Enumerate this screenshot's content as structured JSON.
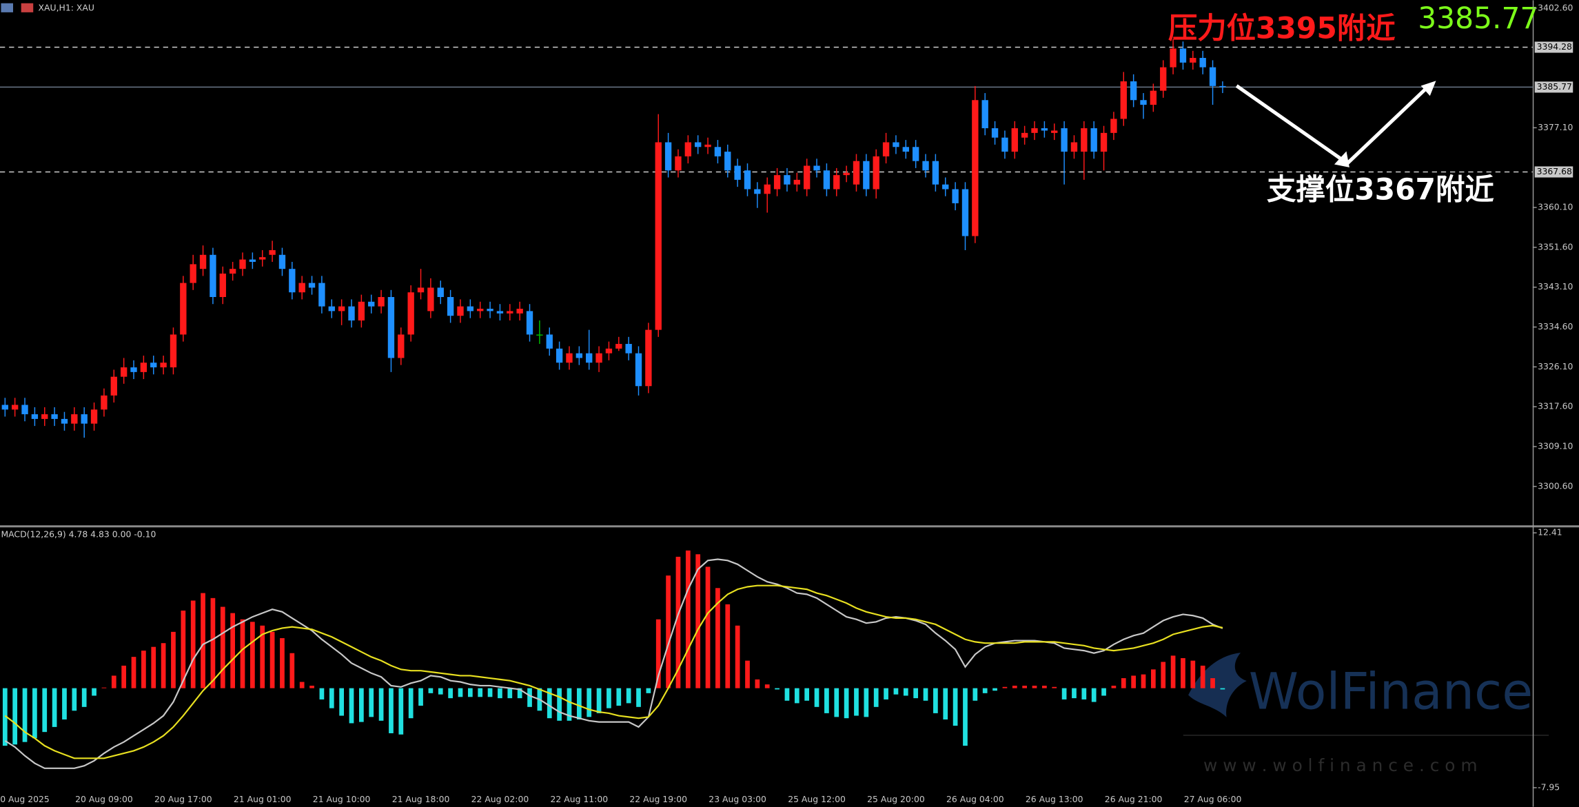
{
  "chart_data": [
    {
      "type": "candlestick",
      "title": "XAU,H1: XAU",
      "categories": [
        null,
        null,
        "0 Aug 2025",
        null,
        null,
        null,
        null,
        null,
        null,
        null,
        "20 Aug 09:00",
        null,
        null,
        null,
        null,
        null,
        null,
        null,
        "20 Aug 17:00",
        null,
        null,
        null,
        null,
        null,
        null,
        null,
        "21 Aug 01:00",
        null,
        null,
        null,
        null,
        null,
        null,
        null,
        "21 Aug 10:00",
        null,
        null,
        null,
        null,
        null,
        null,
        null,
        "21 Aug 18:00",
        null,
        null,
        null,
        null,
        null,
        null,
        null,
        "22 Aug 02:00",
        null,
        null,
        null,
        null,
        null,
        null,
        null,
        "22 Aug 11:00",
        null,
        null,
        null,
        null,
        null,
        null,
        null,
        "22 Aug 19:00",
        null,
        null,
        null,
        null,
        null,
        null,
        null,
        "23 Aug 03:00",
        null,
        null,
        null,
        null,
        null,
        null,
        null,
        "25 Aug 12:00",
        null,
        null,
        null,
        null,
        null,
        null,
        null,
        "25 Aug 20:00",
        null,
        null,
        null,
        null,
        null,
        null,
        null,
        "26 Aug 04:00",
        null,
        null,
        null,
        null,
        null,
        null,
        null,
        "26 Aug 13:00",
        null,
        null,
        null,
        null,
        null,
        null,
        null,
        "26 Aug 21:00",
        null,
        null,
        null,
        null,
        null,
        null,
        null,
        "27 Aug 06:00",
        null
      ],
      "open": [
        3318,
        3317,
        3318,
        3316,
        3315,
        3316,
        3315,
        3314,
        3316,
        3314,
        3317,
        3320,
        3324,
        3326,
        3325,
        3327,
        3326,
        3326,
        3333,
        3344,
        3347,
        3350,
        3341,
        3346,
        3347,
        3349,
        3349,
        3350,
        3350,
        3347,
        3342,
        3344,
        3344,
        3339,
        3338,
        3339,
        3336,
        3340,
        3339,
        3341,
        3328,
        3333,
        3342,
        3338,
        3343,
        3341,
        3337,
        3339,
        3338,
        3338.5,
        3338,
        3337.5,
        3337.5,
        3338,
        3333,
        3333,
        3330,
        3327,
        3329,
        3329,
        3327,
        3329,
        3330,
        3331,
        3329,
        3322,
        3334,
        3374,
        3368,
        3371,
        3374,
        3373,
        3373,
        3372,
        3369,
        3368,
        3364,
        3363,
        3364,
        3367,
        3365,
        3364,
        3369,
        3368,
        3364,
        3367,
        3365,
        3370,
        3364,
        3371,
        3374,
        3373,
        3373,
        3370,
        3370,
        3365,
        3364,
        3364,
        3354,
        3383,
        3377,
        3375,
        3372,
        3375,
        3376,
        3377,
        3376,
        3377,
        3372,
        3372,
        3377,
        3372,
        3376,
        3379,
        3387,
        3383,
        3382,
        3385,
        3390,
        3394,
        3391,
        3392,
        3390,
        3386
      ],
      "high": [
        3319.5,
        3319.5,
        3319.5,
        3317.5,
        3317.5,
        3317.5,
        3316.5,
        3317.5,
        3317.5,
        3318.5,
        3321.5,
        3325.5,
        3328,
        3327.5,
        3328.5,
        3328.5,
        3328.5,
        3334.5,
        3345.5,
        3350,
        3352,
        3351.5,
        3347.5,
        3348.5,
        3350.5,
        3350.5,
        3351,
        3353,
        3351.5,
        3348.5,
        3345.5,
        3345.5,
        3345.5,
        3340.5,
        3340.5,
        3340.5,
        3341.5,
        3341.5,
        3342.5,
        3342.5,
        3334.5,
        3343.5,
        3347,
        3345,
        3344.5,
        3342.5,
        3340.5,
        3340.5,
        3340,
        3340,
        3339.5,
        3339.5,
        3340,
        3339.5,
        3336,
        3334.5,
        3331.5,
        3330.5,
        3330.5,
        3334,
        3330.5,
        3331.5,
        3332.5,
        3332.5,
        3330.5,
        3335.5,
        3380,
        3376,
        3372.5,
        3375.5,
        3375.5,
        3375,
        3374.5,
        3373.5,
        3370.5,
        3369.5,
        3365.5,
        3366.5,
        3368.5,
        3368.5,
        3367.5,
        3370.5,
        3370.5,
        3369.5,
        3368.5,
        3369,
        3371.5,
        3371.5,
        3372.5,
        3376,
        3375.5,
        3374.5,
        3374.5,
        3371.5,
        3371.5,
        3366.5,
        3365.5,
        3365.5,
        3386,
        3384.5,
        3378.5,
        3376.5,
        3378.5,
        3377.5,
        3378.5,
        3378.5,
        3378,
        3378.5,
        3375.5,
        3378.5,
        3378.5,
        3377.5,
        3380.5,
        3389,
        3388.5,
        3384.5,
        3386.5,
        3391.5,
        3396,
        3395.5,
        3393.5,
        3393.5,
        3391.5,
        3387
      ],
      "low": [
        3315.5,
        3315.5,
        3314.5,
        3313.5,
        3313.5,
        3313.5,
        3312.5,
        3312.5,
        3311,
        3312.5,
        3315.5,
        3318.5,
        3322.5,
        3323.5,
        3323.5,
        3324.5,
        3324.5,
        3324.5,
        3331.5,
        3342.5,
        3345.5,
        3339.5,
        3339.5,
        3344.5,
        3345.5,
        3347,
        3347.5,
        3348.5,
        3345.5,
        3340.5,
        3340.5,
        3341.5,
        3337.5,
        3336.5,
        3335,
        3334.5,
        3334.5,
        3337.5,
        3337.5,
        3325,
        3326.5,
        3331.5,
        3340.5,
        3336.5,
        3339.5,
        3335.5,
        3335.5,
        3336.5,
        3336.5,
        3336.5,
        3336,
        3336,
        3336,
        3331.5,
        3331,
        3328.5,
        3325.5,
        3325.5,
        3326.5,
        3325.5,
        3325,
        3327.5,
        3329.5,
        3327.5,
        3320,
        3320.5,
        3332.5,
        3366.5,
        3366.5,
        3369.5,
        3371.5,
        3371.5,
        3369.5,
        3366.5,
        3364.5,
        3362.5,
        3360,
        3359,
        3362.5,
        3363.5,
        3363.5,
        3362.5,
        3366.5,
        3362.5,
        3362.5,
        3365.5,
        3363.5,
        3362.5,
        3362,
        3369.5,
        3371.5,
        3370.5,
        3368.5,
        3366.5,
        3363.5,
        3362.5,
        3359.5,
        3351,
        3352.5,
        3375.5,
        3373.5,
        3370.5,
        3370.5,
        3373.5,
        3374.5,
        3375,
        3374.5,
        3365,
        3370.5,
        3366,
        3370.5,
        3368,
        3374.5,
        3377.5,
        3381.5,
        3379,
        3380.5,
        3383.5,
        3388.5,
        3389.5,
        3389.5,
        3388.5,
        3382,
        3384.5
      ],
      "close": [
        3317,
        3318,
        3316,
        3315,
        3316,
        3315,
        3314,
        3316,
        3314,
        3317,
        3320,
        3324,
        3326,
        3325,
        3327,
        3326,
        3327,
        3333,
        3344,
        3348,
        3350,
        3341,
        3346,
        3347,
        3349,
        3348.5,
        3349.5,
        3351,
        3347,
        3342,
        3344,
        3343,
        3339,
        3338,
        3339,
        3336,
        3340,
        3339,
        3341,
        3328,
        3333,
        3342,
        3343,
        3343,
        3341,
        3337,
        3339,
        3338,
        3338.5,
        3338,
        3337.5,
        3338,
        3338.5,
        3333,
        3333,
        3330,
        3327,
        3329,
        3328,
        3327,
        3329,
        3330,
        3331,
        3329,
        3322,
        3334,
        3374,
        3368,
        3371,
        3374,
        3373,
        3373.5,
        3371,
        3368,
        3366,
        3364,
        3363,
        3365,
        3367,
        3365,
        3366,
        3369,
        3368,
        3364,
        3367,
        3367.5,
        3370,
        3364,
        3371,
        3374,
        3373,
        3372,
        3370,
        3368,
        3365,
        3364,
        3361,
        3354,
        3383,
        3377,
        3375,
        3372,
        3377,
        3376,
        3377,
        3376.5,
        3376.5,
        3372,
        3374,
        3377,
        3372,
        3376,
        3379,
        3387,
        3383,
        3382,
        3385,
        3390,
        3394,
        3391,
        3392,
        3390,
        3386,
        3385.77
      ],
      "colors": {
        "up": "#ff1a1a",
        "down": "#1e8fff",
        "flat": "#00c000"
      },
      "ylim": [
        3404.3,
        3292.2
      ],
      "yticks": [
        {
          "value": 3402.6,
          "label": "3402.60"
        },
        {
          "value": 3377.1,
          "label": "3377.10"
        },
        {
          "value": 3360.1,
          "label": "3360.10"
        },
        {
          "value": 3351.6,
          "label": "3351.60"
        },
        {
          "value": 3343.1,
          "label": "3343.10"
        },
        {
          "value": 3334.6,
          "label": "3334.60"
        },
        {
          "value": 3326.1,
          "label": "3326.10"
        },
        {
          "value": 3317.6,
          "label": "3317.60"
        },
        {
          "value": 3309.1,
          "label": "3309.10"
        },
        {
          "value": 3300.6,
          "label": "3300.60"
        }
      ],
      "lines": [
        {
          "value": 3394.28,
          "label": "3394.28",
          "dashed": true
        },
        {
          "value": 3385.77,
          "label": "3385.77",
          "dashed": false
        },
        {
          "value": 3367.68,
          "label": "3367.68",
          "dashed": true
        }
      ],
      "annotations": {
        "resistance": "压力位3395附近",
        "support": "支撑位3367附近",
        "price": "3385.77"
      }
    },
    {
      "type": "macd",
      "label": "MACD(12,26,9) 4.78 4.83 0.00 -0.10",
      "ylim": [
        12.81,
        -8.59
      ],
      "yticks": [
        12.41,
        -7.95
      ],
      "histogram": {
        "up": "#ff1a1a",
        "down": "#20e0e0",
        "values": [
          -4.6,
          -4.5,
          -4.3,
          -4.0,
          -3.5,
          -3.1,
          -2.5,
          -1.8,
          -1.5,
          -0.6,
          0.05,
          1.0,
          1.8,
          2.5,
          3.0,
          3.3,
          3.6,
          4.5,
          6.2,
          7.0,
          7.6,
          7.2,
          6.5,
          6.0,
          5.5,
          5.3,
          5.0,
          4.5,
          4.0,
          2.8,
          0.5,
          0.2,
          -0.9,
          -1.6,
          -2.2,
          -2.8,
          -2.7,
          -2.3,
          -2.6,
          -3.6,
          -3.7,
          -2.4,
          -1.4,
          -0.4,
          -0.5,
          -0.8,
          -0.7,
          -0.7,
          -0.7,
          -0.7,
          -0.8,
          -0.8,
          -0.8,
          -1.5,
          -1.8,
          -2.4,
          -2.6,
          -2.6,
          -2.5,
          -2.3,
          -2.0,
          -1.6,
          -1.4,
          -1.2,
          -1.5,
          -0.4,
          5.5,
          9.0,
          10.5,
          11.0,
          10.7,
          9.7,
          8.0,
          6.7,
          5.0,
          2.2,
          0.7,
          0.3,
          -0.1,
          -1.0,
          -1.2,
          -1.0,
          -1.5,
          -2.0,
          -2.3,
          -2.4,
          -2.2,
          -2.3,
          -1.5,
          -0.9,
          -0.5,
          -0.6,
          -0.8,
          -1.0,
          -2.0,
          -2.5,
          -3.0,
          -4.6,
          -1.0,
          -0.4,
          -0.2,
          0.1,
          0.2,
          0.2,
          0.2,
          0.2,
          0.1,
          -0.9,
          -0.8,
          -0.9,
          -1.1,
          -0.6,
          0.2,
          0.8,
          1.0,
          1.1,
          1.5,
          2.1,
          2.6,
          2.4,
          2.2,
          1.8,
          0.8,
          -0.1
        ]
      },
      "series": [
        {
          "color": "#c8c8c8",
          "values": [
            -4.2,
            -4.7,
            -5.4,
            -6.0,
            -6.4,
            -6.4,
            -6.4,
            -6.4,
            -6.2,
            -5.8,
            -5.2,
            -4.7,
            -4.3,
            -3.8,
            -3.3,
            -2.8,
            -2.2,
            -1.1,
            0.6,
            2.3,
            3.5,
            3.9,
            4.4,
            4.9,
            5.3,
            5.7,
            6.0,
            6.3,
            6.1,
            5.6,
            5.1,
            4.6,
            3.9,
            3.3,
            2.7,
            2.0,
            1.6,
            1.2,
            0.9,
            0.2,
            0.1,
            0.4,
            0.6,
            1.0,
            0.9,
            0.6,
            0.5,
            0.3,
            0.2,
            0.2,
            0.1,
            0.0,
            -0.1,
            -0.6,
            -0.9,
            -1.4,
            -1.9,
            -2.2,
            -2.4,
            -2.6,
            -2.7,
            -2.7,
            -2.7,
            -2.7,
            -3.1,
            -2.3,
            1.0,
            3.5,
            5.9,
            7.9,
            9.5,
            10.2,
            10.3,
            10.2,
            9.9,
            9.4,
            8.9,
            8.5,
            8.3,
            8.0,
            7.6,
            7.5,
            7.2,
            6.7,
            6.2,
            5.7,
            5.5,
            5.2,
            5.3,
            5.6,
            5.7,
            5.6,
            5.4,
            5.1,
            4.4,
            3.8,
            3.1,
            1.7,
            2.7,
            3.3,
            3.6,
            3.7,
            3.8,
            3.8,
            3.8,
            3.7,
            3.6,
            3.2,
            3.1,
            3.0,
            2.8,
            3.0,
            3.5,
            3.9,
            4.2,
            4.4,
            4.9,
            5.4,
            5.7,
            5.9,
            5.8,
            5.6,
            5.1,
            4.78
          ]
        },
        {
          "color": "#e8e020",
          "values": [
            -2.2,
            -2.8,
            -3.5,
            -4.0,
            -4.6,
            -5.0,
            -5.3,
            -5.6,
            -5.6,
            -5.6,
            -5.6,
            -5.4,
            -5.2,
            -5.0,
            -4.7,
            -4.3,
            -3.8,
            -3.1,
            -2.2,
            -1.2,
            -0.2,
            0.6,
            1.5,
            2.3,
            3.1,
            3.7,
            4.3,
            4.6,
            4.8,
            4.9,
            4.8,
            4.7,
            4.4,
            4.1,
            3.7,
            3.3,
            2.9,
            2.5,
            2.2,
            1.8,
            1.5,
            1.4,
            1.4,
            1.3,
            1.2,
            1.1,
            1.0,
            1.0,
            0.9,
            0.8,
            0.7,
            0.6,
            0.4,
            0.2,
            -0.1,
            -0.4,
            -0.7,
            -1.1,
            -1.4,
            -1.7,
            -1.9,
            -2.0,
            -2.2,
            -2.3,
            -2.4,
            -2.3,
            -1.4,
            0.0,
            1.5,
            3.1,
            4.7,
            6.0,
            6.8,
            7.5,
            7.9,
            8.1,
            8.2,
            8.2,
            8.2,
            8.1,
            8.0,
            7.9,
            7.6,
            7.4,
            7.1,
            6.8,
            6.4,
            6.1,
            5.9,
            5.7,
            5.6,
            5.6,
            5.5,
            5.3,
            5.1,
            4.7,
            4.3,
            3.9,
            3.7,
            3.6,
            3.6,
            3.6,
            3.6,
            3.7,
            3.7,
            3.7,
            3.7,
            3.6,
            3.5,
            3.4,
            3.2,
            3.1,
            3.0,
            3.1,
            3.2,
            3.4,
            3.6,
            3.9,
            4.3,
            4.5,
            4.7,
            4.9,
            5.0,
            4.83
          ]
        }
      ]
    }
  ],
  "watermark": {
    "brand": "WolFinance",
    "url": "w w w . w o l f i n a n c e . c o m"
  }
}
